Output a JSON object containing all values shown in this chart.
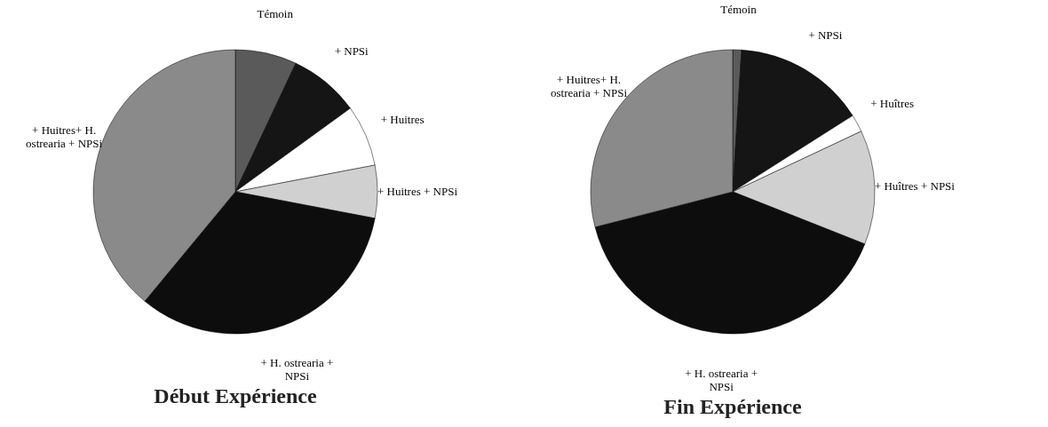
{
  "chart_data": [
    {
      "type": "pie",
      "title": "Début Expérience",
      "categories": [
        "Témoin",
        "+ NPSi",
        "+ Huitres",
        "+ Huitres + NPSi",
        "+ H. ostrearia + NPSi",
        "+ Huitres+ H. ostrearia + NPSi"
      ],
      "values": [
        7,
        8,
        7,
        6,
        33,
        39
      ],
      "colors": [
        "#5a5a5a",
        "#151515",
        "#ffffff",
        "#d0d0d0",
        "#0d0d0d",
        "#8a8a8a"
      ],
      "legend": false
    },
    {
      "type": "pie",
      "title": "Fin Expérience",
      "categories": [
        "Témoin",
        "+ NPSi",
        "+ Huîtres",
        "+ Huîtres + NPSi",
        "+ H. ostrearia + NPSi",
        "+ Huitres+ H. ostrearia + NPSi"
      ],
      "values": [
        1,
        15,
        2,
        13,
        40,
        29
      ],
      "colors": [
        "#5a5a5a",
        "#151515",
        "#ffffff",
        "#c8c8c8",
        "#0d0d0d",
        "#7a7a7a"
      ],
      "legend": false
    }
  ]
}
